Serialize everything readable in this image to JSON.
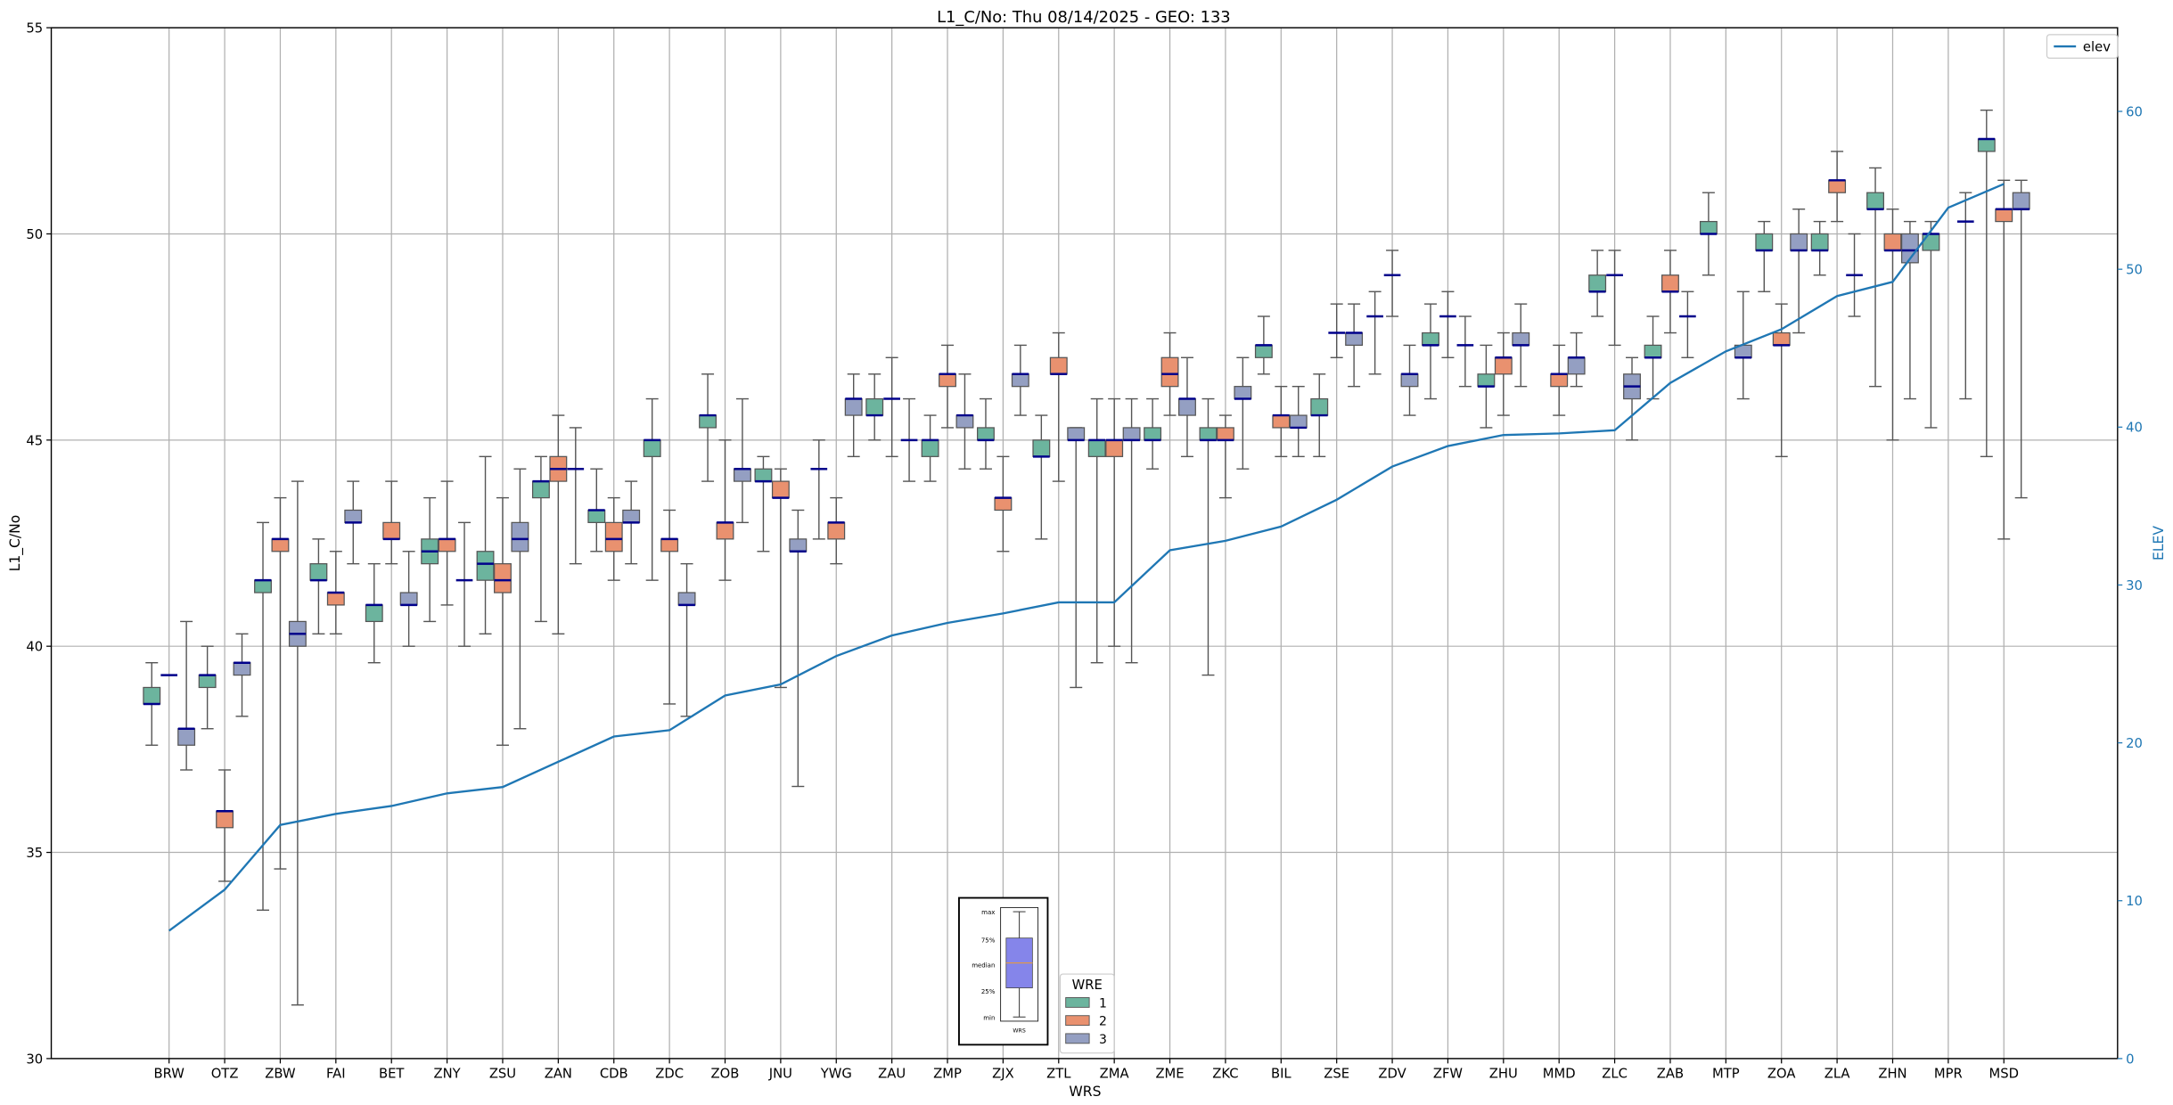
{
  "chart_data": {
    "type": "box",
    "title": "L1_C/No: Thu 08/14/2025 - GEO: 133",
    "xlabel": "WRS",
    "ylabel": "L1_C/No",
    "y2label": "ELEV",
    "ylim": [
      30,
      55
    ],
    "y2lim": [
      0,
      65.3
    ],
    "yticks": [
      30,
      35,
      40,
      45,
      50,
      55
    ],
    "y2ticks": [
      0,
      10,
      20,
      30,
      40,
      50,
      60
    ],
    "grid": true,
    "colors": {
      "1": "#6cb49e",
      "2": "#e9916f",
      "3": "#949fc2",
      "median": "#00008b",
      "elev": "#1f77b4",
      "whisker": "#555555"
    },
    "legend_elev": {
      "label": "elev",
      "placement": "top-right"
    },
    "legend_wre": {
      "title": "WRE",
      "entries": [
        "1",
        "2",
        "3"
      ],
      "placement": "lower-center"
    },
    "key_inset": {
      "labels": [
        "max",
        "75%",
        "median",
        "25%",
        "min"
      ],
      "xlabel": "WRS"
    },
    "categories": [
      "BRW",
      "OTZ",
      "ZBW",
      "FAI",
      "BET",
      "ZNY",
      "ZSU",
      "ZAN",
      "CDB",
      "ZDC",
      "ZOB",
      "JNU",
      "YWG",
      "ZAU",
      "ZMP",
      "ZJX",
      "ZTL",
      "ZMA",
      "ZME",
      "ZKC",
      "BIL",
      "ZSE",
      "ZDV",
      "ZFW",
      "ZHU",
      "MMD",
      "ZLC",
      "ZAB",
      "MTP",
      "ZOA",
      "ZLA",
      "ZHN",
      "MPR",
      "MSD"
    ],
    "elev": [
      8.1,
      10.7,
      14.8,
      15.5,
      16.0,
      16.8,
      17.2,
      18.8,
      20.4,
      20.8,
      23.0,
      23.7,
      25.5,
      26.8,
      27.6,
      28.2,
      28.9,
      28.9,
      32.2,
      32.8,
      33.7,
      35.4,
      37.5,
      38.8,
      39.5,
      39.6,
      39.8,
      42.8,
      44.8,
      46.2,
      48.3,
      49.2,
      53.9,
      55.4
    ],
    "boxes_note": "per category, per WRE: [min, q1, median, q3, max]",
    "boxes": [
      {
        "1": [
          37.6,
          38.6,
          38.6,
          39.0,
          39.6
        ],
        "2": [
          39.3,
          39.3,
          39.3,
          39.3,
          39.3
        ],
        "3": [
          37.0,
          37.6,
          38.0,
          38.0,
          40.6
        ]
      },
      {
        "1": [
          38.0,
          39.0,
          39.3,
          39.3,
          40.0
        ],
        "2": [
          34.3,
          35.6,
          36.0,
          36.0,
          37.0
        ],
        "3": [
          38.3,
          39.3,
          39.6,
          39.6,
          40.3
        ]
      },
      {
        "1": [
          33.6,
          41.3,
          41.6,
          41.6,
          43.0
        ],
        "2": [
          34.6,
          42.3,
          42.6,
          42.6,
          43.6
        ],
        "3": [
          31.3,
          40.0,
          40.3,
          40.6,
          44.0
        ]
      },
      {
        "1": [
          40.3,
          41.6,
          41.6,
          42.0,
          42.6
        ],
        "2": [
          40.3,
          41.0,
          41.3,
          41.3,
          42.3
        ],
        "3": [
          42.0,
          43.0,
          43.0,
          43.3,
          44.0
        ]
      },
      {
        "1": [
          39.6,
          40.6,
          41.0,
          41.0,
          42.0
        ],
        "2": [
          42.0,
          42.6,
          42.6,
          43.0,
          44.0
        ],
        "3": [
          40.0,
          41.0,
          41.0,
          41.3,
          42.3
        ]
      },
      {
        "1": [
          40.6,
          42.0,
          42.3,
          42.6,
          43.6
        ],
        "2": [
          41.0,
          42.3,
          42.6,
          42.6,
          44.0
        ],
        "3": [
          40.0,
          41.6,
          41.6,
          41.6,
          43.0
        ]
      },
      {
        "1": [
          40.3,
          41.6,
          42.0,
          42.3,
          44.6
        ],
        "2": [
          37.6,
          41.3,
          41.6,
          42.0,
          43.6
        ],
        "3": [
          38.0,
          42.3,
          42.6,
          43.0,
          44.3
        ]
      },
      {
        "1": [
          40.6,
          43.6,
          44.0,
          44.0,
          44.6
        ],
        "2": [
          40.3,
          44.0,
          44.3,
          44.6,
          45.6
        ],
        "3": [
          42.0,
          44.3,
          44.3,
          44.3,
          45.3
        ]
      },
      {
        "1": [
          42.3,
          43.0,
          43.3,
          43.3,
          44.3
        ],
        "2": [
          41.6,
          42.3,
          42.6,
          43.0,
          43.6
        ],
        "3": [
          42.0,
          43.0,
          43.0,
          43.3,
          44.0
        ]
      },
      {
        "1": [
          41.6,
          44.6,
          45.0,
          45.0,
          46.0
        ],
        "2": [
          38.6,
          42.3,
          42.6,
          42.6,
          43.3
        ],
        "3": [
          38.3,
          41.0,
          41.0,
          41.3,
          42.0
        ]
      },
      {
        "1": [
          44.0,
          45.3,
          45.6,
          45.6,
          46.6
        ],
        "2": [
          41.6,
          42.6,
          43.0,
          43.0,
          45.0
        ],
        "3": [
          43.0,
          44.0,
          44.3,
          44.3,
          46.0
        ]
      },
      {
        "1": [
          42.3,
          44.0,
          44.0,
          44.3,
          44.6
        ],
        "2": [
          39.0,
          43.6,
          43.6,
          44.0,
          44.3
        ],
        "3": [
          36.6,
          42.3,
          42.3,
          42.6,
          43.3
        ]
      },
      {
        "1": [
          42.6,
          44.3,
          44.3,
          44.3,
          45.0
        ],
        "2": [
          42.0,
          42.6,
          43.0,
          43.0,
          43.6
        ],
        "3": [
          44.6,
          45.6,
          46.0,
          46.0,
          46.6
        ]
      },
      {
        "1": [
          45.0,
          45.6,
          45.6,
          46.0,
          46.6
        ],
        "2": [
          44.6,
          46.0,
          46.0,
          46.0,
          47.0
        ],
        "3": [
          44.0,
          45.0,
          45.0,
          45.0,
          46.0
        ]
      },
      {
        "1": [
          44.0,
          44.6,
          45.0,
          45.0,
          45.6
        ],
        "2": [
          45.3,
          46.3,
          46.6,
          46.6,
          47.3
        ],
        "3": [
          44.3,
          45.3,
          45.6,
          45.6,
          46.6
        ]
      },
      {
        "1": [
          44.3,
          45.0,
          45.0,
          45.3,
          46.0
        ],
        "2": [
          42.3,
          43.3,
          43.6,
          43.6,
          44.6
        ],
        "3": [
          45.6,
          46.3,
          46.6,
          46.6,
          47.3
        ]
      },
      {
        "1": [
          42.6,
          44.6,
          44.6,
          45.0,
          45.6
        ],
        "2": [
          44.0,
          46.6,
          46.6,
          47.0,
          47.6
        ],
        "3": [
          39.0,
          45.0,
          45.0,
          45.3,
          45.3
        ]
      },
      {
        "1": [
          39.6,
          44.6,
          45.0,
          45.0,
          46.0
        ],
        "2": [
          40.0,
          44.6,
          45.0,
          45.0,
          46.0
        ],
        "3": [
          39.6,
          45.0,
          45.0,
          45.3,
          46.0
        ]
      },
      {
        "1": [
          44.3,
          45.0,
          45.0,
          45.3,
          46.0
        ],
        "2": [
          45.6,
          46.3,
          46.6,
          47.0,
          47.6
        ],
        "3": [
          44.6,
          45.6,
          46.0,
          46.0,
          47.0
        ]
      },
      {
        "1": [
          39.3,
          45.0,
          45.0,
          45.3,
          46.0
        ],
        "2": [
          43.6,
          45.0,
          45.0,
          45.3,
          45.6
        ],
        "3": [
          44.3,
          46.0,
          46.0,
          46.3,
          47.0
        ]
      },
      {
        "1": [
          46.6,
          47.0,
          47.3,
          47.3,
          48.0
        ],
        "2": [
          44.6,
          45.3,
          45.6,
          45.6,
          46.3
        ],
        "3": [
          44.6,
          45.3,
          45.3,
          45.6,
          46.3
        ]
      },
      {
        "1": [
          44.6,
          45.6,
          45.6,
          46.0,
          46.6
        ],
        "2": [
          47.0,
          47.6,
          47.6,
          47.6,
          48.3
        ],
        "3": [
          46.3,
          47.3,
          47.6,
          47.6,
          48.3
        ]
      },
      {
        "1": [
          46.6,
          48.0,
          48.0,
          48.0,
          48.6
        ],
        "2": [
          48.0,
          49.0,
          49.0,
          49.0,
          49.6
        ],
        "3": [
          45.6,
          46.3,
          46.6,
          46.6,
          47.3
        ]
      },
      {
        "1": [
          46.0,
          47.3,
          47.3,
          47.6,
          48.3
        ],
        "2": [
          47.0,
          48.0,
          48.0,
          48.0,
          48.6
        ],
        "3": [
          46.3,
          47.3,
          47.3,
          47.3,
          48.0
        ]
      },
      {
        "1": [
          45.3,
          46.3,
          46.3,
          46.6,
          47.3
        ],
        "2": [
          45.6,
          46.6,
          47.0,
          47.0,
          47.6
        ],
        "3": [
          46.3,
          47.3,
          47.3,
          47.6,
          48.3
        ]
      },
      {
        "2": [
          45.6,
          46.3,
          46.6,
          46.6,
          47.3
        ],
        "3": [
          46.3,
          46.6,
          47.0,
          47.0,
          47.6
        ]
      },
      {
        "1": [
          48.0,
          48.6,
          48.6,
          49.0,
          49.6
        ],
        "2": [
          47.3,
          49.0,
          49.0,
          49.0,
          49.6
        ],
        "3": [
          45.0,
          46.0,
          46.3,
          46.6,
          47.0
        ]
      },
      {
        "1": [
          46.0,
          47.0,
          47.0,
          47.3,
          48.0
        ],
        "2": [
          47.6,
          48.6,
          48.6,
          49.0,
          49.6
        ],
        "3": [
          47.0,
          48.0,
          48.0,
          48.0,
          48.6
        ]
      },
      {
        "1": [
          49.0,
          50.0,
          50.0,
          50.3,
          51.0
        ],
        "3": [
          46.0,
          47.0,
          47.0,
          47.3,
          48.6
        ]
      },
      {
        "1": [
          48.6,
          49.6,
          49.6,
          50.0,
          50.3
        ],
        "2": [
          44.6,
          47.3,
          47.3,
          47.6,
          48.3
        ],
        "3": [
          47.6,
          49.6,
          49.6,
          50.0,
          50.6
        ]
      },
      {
        "1": [
          49.0,
          49.6,
          49.6,
          50.0,
          50.3
        ],
        "2": [
          50.3,
          51.0,
          51.3,
          51.3,
          52.0
        ],
        "3": [
          48.0,
          49.0,
          49.0,
          49.0,
          50.0
        ]
      },
      {
        "1": [
          46.3,
          50.6,
          50.6,
          51.0,
          51.6
        ],
        "2": [
          45.0,
          49.6,
          49.6,
          50.0,
          50.6
        ],
        "3": [
          46.0,
          49.3,
          49.6,
          50.0,
          50.3
        ]
      },
      {
        "1": [
          45.3,
          49.6,
          50.0,
          50.0,
          50.3
        ],
        "3": [
          46.0,
          50.3,
          50.3,
          50.3,
          51.0
        ]
      },
      {
        "1": [
          44.6,
          52.0,
          52.3,
          52.3,
          53.0
        ],
        "2": [
          42.6,
          50.3,
          50.6,
          50.6,
          51.3
        ],
        "3": [
          43.6,
          50.6,
          50.6,
          51.0,
          51.3
        ]
      }
    ]
  }
}
